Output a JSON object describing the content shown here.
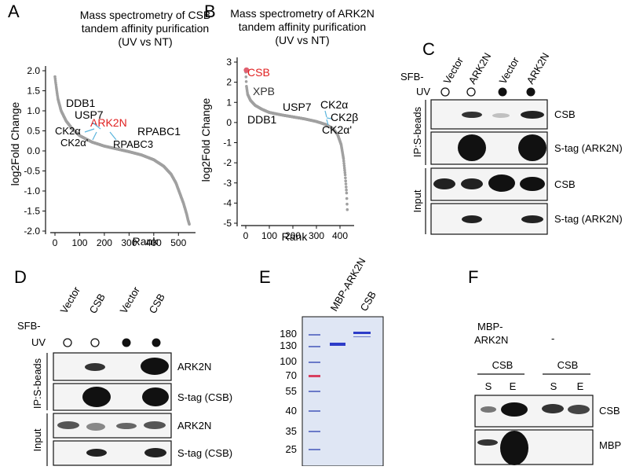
{
  "panels": {
    "A": {
      "label": "A",
      "title_lines": [
        "Mass spectrometry of CSB",
        "tandem affinity purification",
        "(UV vs NT)"
      ],
      "chart_data": {
        "type": "scatter",
        "xlabel": "Rank",
        "ylabel": "log2Fold Change",
        "xlim": [
          0,
          550
        ],
        "ylim": [
          -2.0,
          2.0
        ],
        "x_ticks": [
          "0",
          "100",
          "200",
          "300",
          "400",
          "500"
        ],
        "y_ticks": [
          "2.0",
          "1.5",
          "1.0",
          "0.5",
          "0.0",
          "-0.5",
          "-1.0",
          "-1.5",
          "-2.0"
        ],
        "x_tick_values": [
          0,
          100,
          200,
          300,
          400,
          500
        ],
        "y_tick_values": [
          2.0,
          1.5,
          1.0,
          0.5,
          0.0,
          -0.5,
          -1.0,
          -1.5,
          -2.0
        ],
        "n_points": 545,
        "curve_anchors": [
          [
            0,
            1.85
          ],
          [
            5,
            1.6
          ],
          [
            12,
            1.3
          ],
          [
            25,
            1.0
          ],
          [
            45,
            0.75
          ],
          [
            70,
            0.55
          ],
          [
            100,
            0.38
          ],
          [
            150,
            0.22
          ],
          [
            200,
            0.12
          ],
          [
            250,
            0.05
          ],
          [
            300,
            -0.02
          ],
          [
            350,
            -0.1
          ],
          [
            400,
            -0.22
          ],
          [
            440,
            -0.38
          ],
          [
            470,
            -0.58
          ],
          [
            490,
            -0.8
          ],
          [
            505,
            -1.05
          ],
          [
            520,
            -1.3
          ],
          [
            532,
            -1.55
          ],
          [
            540,
            -1.75
          ],
          [
            545,
            -1.85
          ]
        ],
        "point_color": "#a0a0a0",
        "annotations": [
          {
            "text": "DDB1",
            "color": "#111111"
          },
          {
            "text": "USP7",
            "color": "#111111"
          },
          {
            "text": "ARK2N",
            "color": "#e02020"
          },
          {
            "text": "CK2α",
            "color": "#111111"
          },
          {
            "text": "RPABC1",
            "color": "#111111"
          },
          {
            "text": "CK2α'",
            "color": "#111111"
          },
          {
            "text": "RPABC3",
            "color": "#111111"
          }
        ]
      }
    },
    "B": {
      "label": "B",
      "title_lines": [
        "Mass spectrometry of ARK2N",
        "tandem affinity purification",
        "(UV vs NT)"
      ],
      "chart_data": {
        "type": "scatter",
        "xlabel": "Rank",
        "ylabel": "log2Fold Change",
        "xlim": [
          0,
          440
        ],
        "ylim": [
          -5,
          3
        ],
        "x_ticks": [
          "0",
          "100",
          "200",
          "300",
          "400"
        ],
        "y_ticks": [
          "3",
          "2",
          "1",
          "0",
          "-1",
          "-2",
          "-3",
          "-4",
          "-5"
        ],
        "x_tick_values": [
          0,
          100,
          200,
          300,
          400
        ],
        "y_tick_values": [
          3,
          2,
          1,
          0,
          -1,
          -2,
          -3,
          -4,
          -5
        ],
        "n_points": 432,
        "curve_anchors": [
          [
            0,
            2.5
          ],
          [
            3,
            1.8
          ],
          [
            8,
            1.4
          ],
          [
            20,
            1.1
          ],
          [
            40,
            0.85
          ],
          [
            70,
            0.65
          ],
          [
            100,
            0.5
          ],
          [
            150,
            0.38
          ],
          [
            200,
            0.28
          ],
          [
            250,
            0.18
          ],
          [
            300,
            0.05
          ],
          [
            340,
            -0.1
          ],
          [
            370,
            -0.3
          ],
          [
            390,
            -0.6
          ],
          [
            405,
            -1.1
          ],
          [
            415,
            -1.8
          ],
          [
            422,
            -2.6
          ],
          [
            428,
            -3.5
          ],
          [
            432,
            -4.6
          ]
        ],
        "point_color": "#a0a0a0",
        "highlight_point": {
          "x": 3,
          "y": 2.6,
          "color": "#e06070"
        },
        "annotations": [
          {
            "text": "CSB",
            "color": "#e02020"
          },
          {
            "text": "XPB",
            "color": "#111111"
          },
          {
            "text": "USP7",
            "color": "#111111"
          },
          {
            "text": "CK2α",
            "color": "#111111"
          },
          {
            "text": "DDB1",
            "color": "#111111"
          },
          {
            "text": "CK2β",
            "color": "#111111"
          },
          {
            "text": "CK2α'",
            "color": "#111111"
          }
        ]
      }
    },
    "C": {
      "label": "C",
      "lanes": [
        "Vector",
        "ARK2N",
        "Vector",
        "ARK2N"
      ],
      "row_labels": [
        "SFB-",
        "UV"
      ],
      "uv_symbols": [
        "○",
        "○",
        "●",
        "●"
      ],
      "group_labels": [
        "IP:S-beads",
        "Input"
      ],
      "blot_labels": [
        "CSB",
        "S-tag (ARK2N)",
        "CSB",
        "S-tag (ARK2N)"
      ]
    },
    "D": {
      "label": "D",
      "lanes": [
        "Vector",
        "CSB",
        "Vector",
        "CSB"
      ],
      "row_labels": [
        "SFB-",
        "UV"
      ],
      "uv_symbols": [
        "○",
        "○",
        "●",
        "●"
      ],
      "group_labels": [
        "IP:S-beads",
        "Input"
      ],
      "blot_labels": [
        "ARK2N",
        "S-tag (CSB)",
        "ARK2N",
        "S-tag (CSB)"
      ]
    },
    "E": {
      "label": "E",
      "lanes": [
        "MBP-ARK2N",
        "CSB"
      ],
      "markers": [
        "180",
        "130",
        "100",
        "70",
        "55",
        "40",
        "35",
        "25"
      ]
    },
    "F": {
      "label": "F",
      "header_lines": [
        "MBP-",
        "ARK2N"
      ],
      "dash": "-",
      "group_label": "CSB",
      "lane_labels": [
        "S",
        "E",
        "S",
        "E"
      ],
      "blot_labels": [
        "CSB",
        "MBP"
      ]
    }
  },
  "colors": {
    "axis": "#111111",
    "points": "#a0a0a0",
    "highlight_red": "#e02020",
    "arrow_blue": "#5ab4dc",
    "blot_bg": "#f4f4f4",
    "band": "#111111",
    "gel_bg": "#dfe6f4",
    "gel_band": "#2d3cc8",
    "ladder_red": "#d84060"
  }
}
